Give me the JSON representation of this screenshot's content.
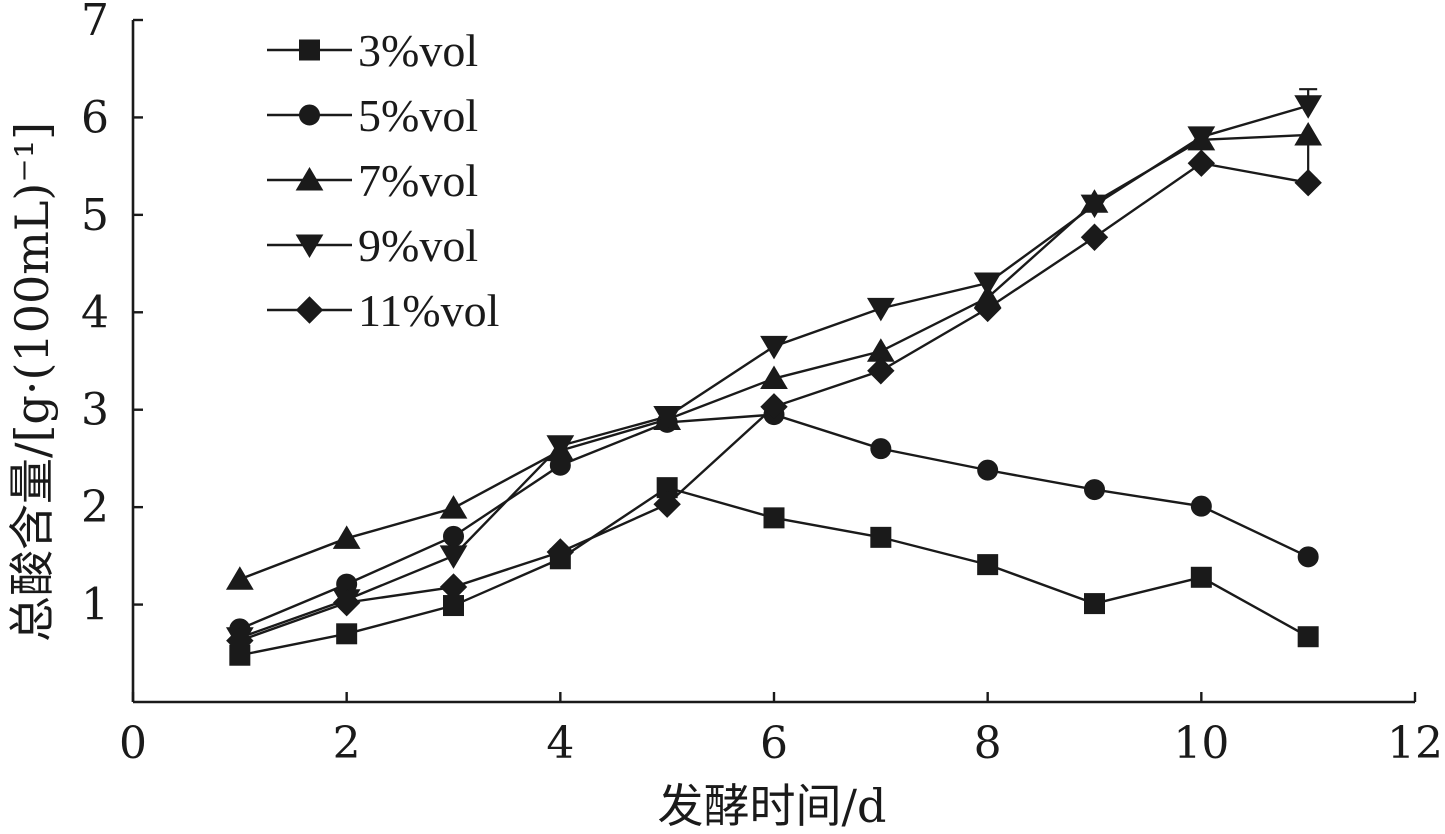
{
  "chart_data": {
    "type": "line",
    "xlabel": "发酵时间/d",
    "ylabel": "总酸含量/[g·(100mL)⁻¹]",
    "xlim": [
      0,
      12
    ],
    "ylim": [
      0,
      7
    ],
    "xticks": [
      0,
      2,
      4,
      6,
      8,
      10,
      12
    ],
    "yticks": [
      1,
      2,
      3,
      4,
      5,
      6,
      7
    ],
    "grid": false,
    "legend_position": "top-left",
    "x": [
      1,
      2,
      3,
      4,
      5,
      6,
      7,
      8,
      9,
      10,
      11
    ],
    "series": [
      {
        "name": "3%vol",
        "marker": "square",
        "values": [
          0.48,
          0.7,
          0.99,
          1.47,
          2.2,
          1.89,
          1.69,
          1.41,
          1.01,
          1.28,
          0.67
        ]
      },
      {
        "name": "5%vol",
        "marker": "circle",
        "values": [
          0.75,
          1.21,
          1.7,
          2.43,
          2.87,
          2.95,
          2.6,
          2.38,
          2.18,
          2.01,
          1.49
        ]
      },
      {
        "name": "7%vol",
        "marker": "triangle-up",
        "values": [
          1.26,
          1.68,
          1.99,
          2.58,
          2.9,
          3.32,
          3.6,
          4.15,
          5.13,
          5.77,
          5.82
        ]
      },
      {
        "name": "9%vol",
        "marker": "triangle-down",
        "values": [
          0.66,
          1.05,
          1.5,
          2.63,
          2.93,
          3.65,
          4.04,
          4.3,
          5.1,
          5.8,
          6.12
        ]
      },
      {
        "name": "11%vol",
        "marker": "diamond",
        "values": [
          0.63,
          1.02,
          1.18,
          1.54,
          2.03,
          3.03,
          3.4,
          4.04,
          4.77,
          5.53,
          5.33
        ]
      }
    ],
    "error_bars": [
      {
        "series": "9%vol",
        "x": 11,
        "plus": 0.17
      },
      {
        "series": "7%vol",
        "x": 11,
        "minus": 0.45
      }
    ]
  }
}
